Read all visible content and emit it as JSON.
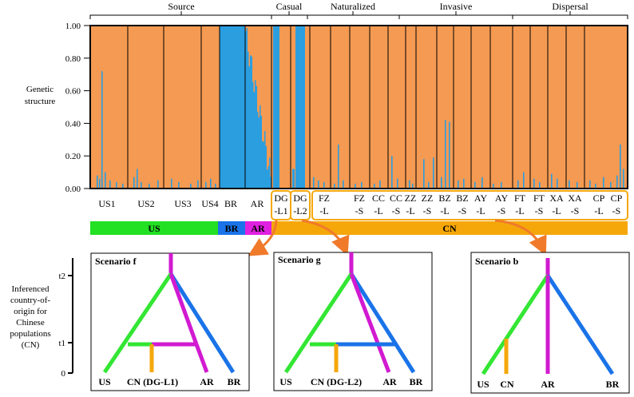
{
  "groups": [
    {
      "label": "Source"
    },
    {
      "label": "Casual"
    },
    {
      "label": "Naturalized"
    },
    {
      "label": "Invasive"
    },
    {
      "label": "Dispersal"
    }
  ],
  "y_axis": {
    "label_line1": "Genetic",
    "label_line2": "structure",
    "ticks": [
      "1.00",
      "0.80",
      "0.60",
      "0.40",
      "0.20",
      "0.00"
    ]
  },
  "populations": [
    {
      "l1": "US1",
      "l2": ""
    },
    {
      "l1": "US2",
      "l2": ""
    },
    {
      "l1": "US3",
      "l2": ""
    },
    {
      "l1": "US4",
      "l2": ""
    },
    {
      "l1": "BR",
      "l2": ""
    },
    {
      "l1": "AR",
      "l2": ""
    },
    {
      "l1": "DG",
      "l2": "-L1"
    },
    {
      "l1": "DG",
      "l2": "-L2"
    },
    {
      "l1": "FZ",
      "l2": "-L"
    },
    {
      "l1": "FZ",
      "l2": "-S"
    },
    {
      "l1": "CC",
      "l2": "-L"
    },
    {
      "l1": "CC",
      "l2": "-S"
    },
    {
      "l1": "ZZ",
      "l2": "-L"
    },
    {
      "l1": "ZZ",
      "l2": "-S"
    },
    {
      "l1": "BZ",
      "l2": "-L"
    },
    {
      "l1": "BZ",
      "l2": "-S"
    },
    {
      "l1": "AY",
      "l2": "-L"
    },
    {
      "l1": "AY",
      "l2": "-S"
    },
    {
      "l1": "FT",
      "l2": "-L"
    },
    {
      "l1": "FT",
      "l2": "-S"
    },
    {
      "l1": "XA",
      "l2": "-L"
    },
    {
      "l1": "XA",
      "l2": "-S"
    },
    {
      "l1": "CP",
      "l2": "-L"
    },
    {
      "l1": "CP",
      "l2": "-S"
    }
  ],
  "country_bar": [
    {
      "label": "US",
      "color": "#22e022"
    },
    {
      "label": "BR",
      "color": "#1a73e8"
    },
    {
      "label": "AR",
      "color": "#e020e0"
    },
    {
      "label": "CN",
      "color": "#f5a70a"
    }
  ],
  "colors": {
    "orange": "#f59a52",
    "blue": "#2b9ee0",
    "green": "#33e633",
    "branch_blue": "#1a73e8",
    "magenta": "#d11ad1",
    "gold": "#f5a70a",
    "arrow": "#f07a2a"
  },
  "timeline": {
    "label_lines": [
      "Inferenced",
      "country-of-",
      "origin for",
      "Chinese",
      "populations",
      "(CN)"
    ],
    "ticks": [
      "t2",
      "t1",
      "0"
    ]
  },
  "scenarios": [
    {
      "title": "Scenario f",
      "leaves": [
        "US",
        "CN (DG-L1)",
        "AR",
        "BR"
      ]
    },
    {
      "title": "Scenario g",
      "leaves": [
        "US",
        "CN (DG-L2)",
        "AR",
        "BR"
      ]
    },
    {
      "title": "Scenario b",
      "leaves": [
        "US",
        "CN",
        "AR",
        "BR"
      ]
    }
  ]
}
